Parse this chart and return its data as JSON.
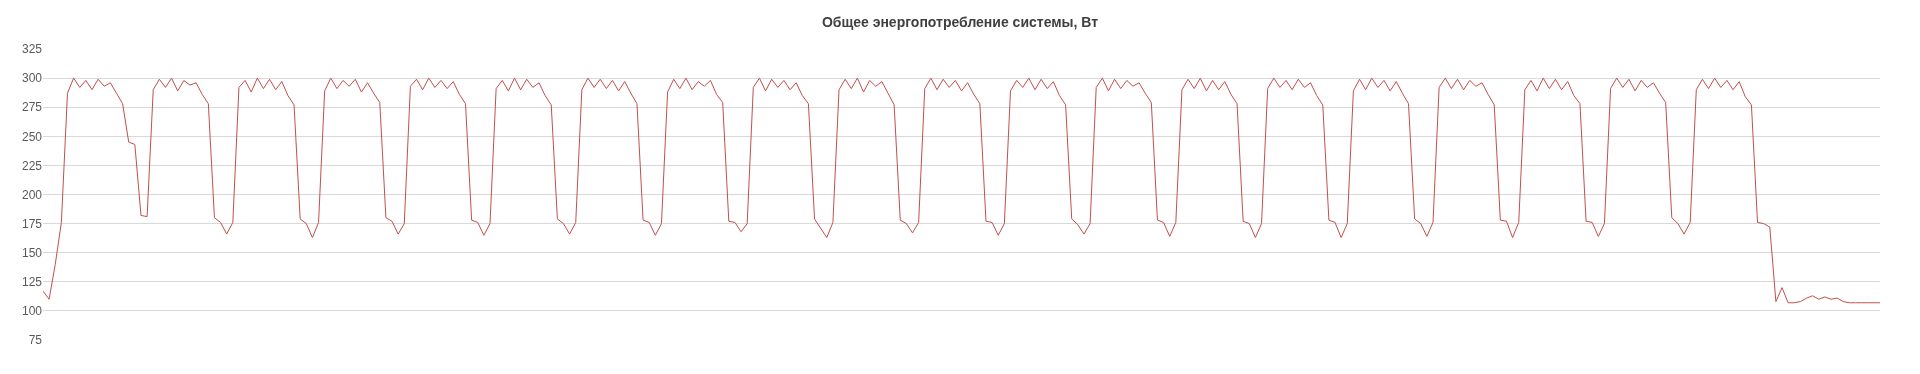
{
  "chart_data": {
    "type": "line",
    "title": "Общее энергопотребление системы, Вт",
    "categories": [
      null,
      null,
      null,
      null,
      null,
      null,
      null,
      null,
      null,
      null,
      null,
      null,
      null,
      null,
      null,
      null,
      null,
      null,
      null,
      null,
      null,
      null,
      null,
      null,
      null,
      null,
      null,
      null,
      null,
      null,
      null,
      null,
      null,
      null,
      null,
      null,
      null,
      null,
      null,
      null,
      null,
      null,
      null,
      null,
      null,
      null,
      null,
      null,
      null,
      null,
      null,
      null,
      null,
      null,
      null,
      null,
      null,
      null,
      null,
      null,
      null,
      null,
      null,
      null,
      null,
      null,
      null,
      null,
      null,
      null,
      null,
      null,
      null,
      null,
      null,
      null,
      null,
      null,
      null,
      null,
      null,
      null,
      null,
      null,
      null,
      null,
      null,
      null,
      null,
      null,
      null,
      null,
      null,
      null,
      null,
      null,
      null,
      null,
      null,
      null,
      null,
      null,
      null,
      null,
      null,
      null,
      null,
      null,
      null,
      null,
      null,
      null,
      null,
      null,
      null,
      null,
      null,
      null,
      null,
      null,
      null,
      null,
      null,
      null,
      null,
      null,
      null,
      null,
      null,
      null,
      null,
      null,
      null,
      null,
      null,
      null,
      null,
      null,
      null,
      null,
      null,
      null,
      null,
      null,
      null,
      null,
      null,
      null,
      null,
      null,
      null,
      null,
      null,
      null,
      null,
      null,
      null,
      null,
      null,
      null,
      null,
      null,
      null,
      null,
      null,
      null,
      null,
      null,
      null,
      null,
      null,
      null,
      null,
      null,
      null,
      null,
      null,
      null,
      null,
      null,
      null,
      null,
      null,
      null,
      null,
      null,
      null,
      null,
      null,
      null,
      null,
      null,
      null,
      null,
      null,
      null,
      null,
      null,
      null,
      null,
      null,
      null,
      null,
      null,
      null,
      null,
      null,
      null,
      null,
      null,
      null,
      null,
      null,
      null,
      null,
      null,
      null,
      null,
      null,
      null,
      null,
      null,
      null,
      null,
      null,
      null,
      null,
      null,
      null,
      null,
      null,
      null,
      null,
      null,
      null,
      null,
      null,
      null,
      null,
      null,
      null,
      null,
      null,
      null,
      null,
      null,
      null,
      null,
      null,
      null,
      null,
      null,
      null,
      null,
      null,
      null,
      null,
      null,
      null,
      null,
      null,
      null,
      null,
      null,
      null,
      null,
      null,
      null,
      null,
      null,
      null,
      null,
      null,
      null,
      null,
      null,
      null,
      null,
      null,
      null,
      null,
      null,
      null,
      null,
      null,
      null,
      null,
      null,
      null,
      null,
      null,
      null,
      null,
      null,
      null,
      null,
      null,
      null,
      null,
      null,
      null
    ],
    "series": [
      {
        "color": "#c0504d",
        "values": [
          117,
          110,
          140,
          176,
          287,
          300,
          292,
          298,
          290,
          299,
          293,
          296,
          287,
          278,
          245,
          243,
          182,
          181,
          290,
          299,
          292,
          300,
          289,
          298,
          294,
          296,
          286,
          278,
          180,
          176,
          166,
          176,
          292,
          298,
          288,
          300,
          291,
          299,
          290,
          297,
          285,
          277,
          179,
          175,
          163,
          176,
          289,
          300,
          291,
          298,
          293,
          299,
          288,
          296,
          287,
          279,
          180,
          177,
          166,
          175,
          293,
          299,
          290,
          300,
          292,
          298,
          291,
          297,
          286,
          278,
          178,
          176,
          165,
          175,
          291,
          298,
          289,
          300,
          290,
          299,
          292,
          296,
          285,
          277,
          179,
          175,
          166,
          176,
          290,
          300,
          292,
          299,
          291,
          298,
          289,
          297,
          287,
          278,
          178,
          176,
          165,
          175,
          288,
          299,
          291,
          300,
          290,
          297,
          293,
          298,
          286,
          279,
          177,
          176,
          168,
          175,
          292,
          300,
          289,
          299,
          292,
          298,
          290,
          296,
          285,
          278,
          179,
          171,
          163,
          176,
          290,
          299,
          291,
          300,
          288,
          298,
          293,
          297,
          287,
          277,
          178,
          175,
          167,
          176,
          291,
          300,
          290,
          299,
          292,
          298,
          289,
          296,
          286,
          278,
          177,
          176,
          165,
          175,
          289,
          298,
          292,
          300,
          290,
          299,
          291,
          297,
          285,
          277,
          179,
          174,
          166,
          175,
          292,
          300,
          289,
          299,
          291,
          298,
          293,
          296,
          287,
          279,
          178,
          176,
          164,
          176,
          290,
          299,
          291,
          300,
          289,
          298,
          290,
          297,
          286,
          278,
          177,
          175,
          163,
          175,
          291,
          300,
          292,
          298,
          290,
          299,
          292,
          296,
          285,
          277,
          178,
          176,
          163,
          175,
          289,
          299,
          290,
          300,
          292,
          298,
          289,
          297,
          287,
          278,
          179,
          175,
          164,
          176,
          292,
          300,
          291,
          299,
          290,
          298,
          293,
          296,
          286,
          277,
          178,
          177,
          163,
          176,
          290,
          298,
          289,
          300,
          291,
          299,
          290,
          297,
          285,
          278,
          177,
          176,
          164,
          175,
          291,
          300,
          292,
          299,
          289,
          298,
          292,
          296,
          287,
          279,
          180,
          175,
          166,
          176,
          290,
          299,
          291,
          300,
          292,
          298,
          290,
          297,
          284,
          277,
          176,
          175,
          172,
          108,
          120,
          107,
          107,
          108,
          111,
          113,
          110,
          112,
          110,
          111,
          108,
          107,
          107,
          107,
          107,
          107,
          107
        ]
      }
    ],
    "ylim": [
      75,
      325
    ],
    "yticks": [
      75,
      100,
      125,
      150,
      175,
      200,
      225,
      250,
      275,
      300,
      325
    ],
    "grid": "y",
    "marker": "none",
    "line_style": "solid"
  }
}
